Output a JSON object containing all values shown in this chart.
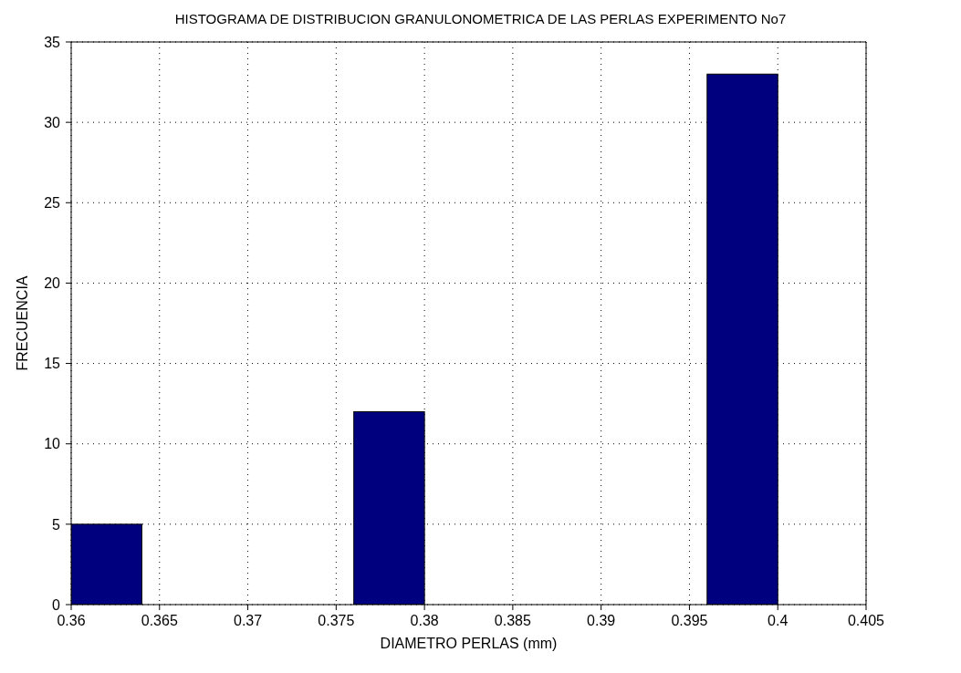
{
  "chart_data": {
    "type": "histogram",
    "title": "HISTOGRAMA DE DISTRIBUCION GRANULONOMETRICA DE LAS PERLAS EXPERIMENTO No7",
    "xlabel": "DIAMETRO PERLAS (mm)",
    "ylabel": "FRECUENCIA",
    "bins": [
      0.36,
      0.364,
      0.368,
      0.372,
      0.376,
      0.38,
      0.384,
      0.388,
      0.392,
      0.396,
      0.4
    ],
    "values": [
      5,
      0,
      0,
      0,
      12,
      0,
      0,
      0,
      0,
      33
    ],
    "color": "#00007f",
    "xlim": [
      0.36,
      0.405
    ],
    "xticks": [
      0.36,
      0.365,
      0.37,
      0.375,
      0.38,
      0.385,
      0.39,
      0.395,
      0.4,
      0.405
    ],
    "ylim": [
      0,
      35
    ],
    "yticks": [
      0,
      5,
      10,
      15,
      20,
      25,
      30,
      35
    ],
    "grid": true
  }
}
